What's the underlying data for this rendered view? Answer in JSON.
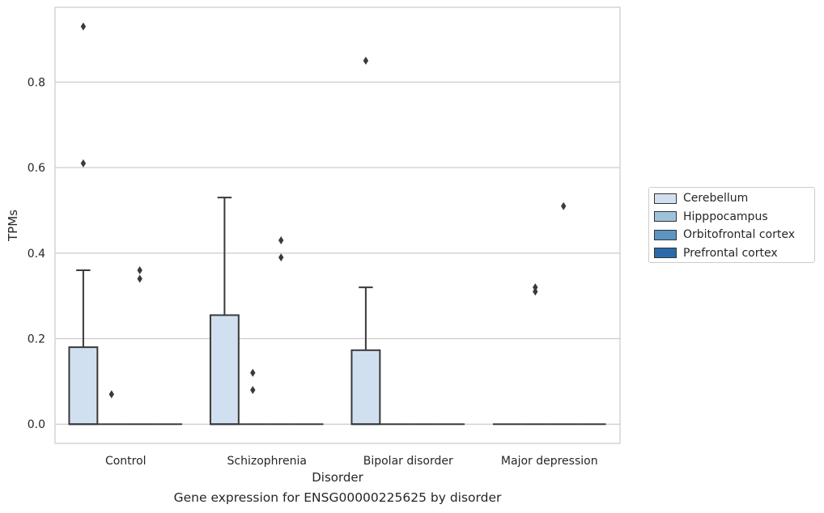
{
  "chart_data": {
    "type": "box",
    "title": "",
    "caption": "Gene expression for ENSG00000225625 by disorder",
    "xlabel": "Disorder",
    "ylabel": "TPMs",
    "ylim": [
      -0.045,
      0.975
    ],
    "yticks": [
      0.0,
      0.2,
      0.4,
      0.6,
      0.8
    ],
    "ytick_labels": [
      "0.0",
      "0.2",
      "0.4",
      "0.6",
      "0.8"
    ],
    "grid": "horizontal",
    "legend_position": "right",
    "categories": [
      "Control",
      "Schizophrenia",
      "Bipolar disorder",
      "Major depression"
    ],
    "series": [
      {
        "name": "Cerebellum",
        "color": "#d1e0f0",
        "boxes": [
          {
            "category": "Control",
            "min": 0.0,
            "q1": 0.0,
            "median": 0.0,
            "q3": 0.18,
            "max": 0.36,
            "outliers": [
              0.61,
              0.93
            ]
          },
          {
            "category": "Schizophrenia",
            "min": 0.0,
            "q1": 0.0,
            "median": 0.0,
            "q3": 0.255,
            "max": 0.53,
            "outliers": []
          },
          {
            "category": "Bipolar disorder",
            "min": 0.0,
            "q1": 0.0,
            "median": 0.0,
            "q3": 0.173,
            "max": 0.32,
            "outliers": [
              0.85
            ]
          },
          {
            "category": "Major depression",
            "min": 0.0,
            "q1": 0.0,
            "median": 0.0,
            "q3": 0.0,
            "max": 0.0,
            "outliers": []
          }
        ]
      },
      {
        "name": "Hipppocampus",
        "color": "#9ec2dc",
        "boxes": [
          {
            "category": "Control",
            "min": 0.0,
            "q1": 0.0,
            "median": 0.0,
            "q3": 0.0,
            "max": 0.0,
            "outliers": [
              0.07
            ]
          },
          {
            "category": "Schizophrenia",
            "min": 0.0,
            "q1": 0.0,
            "median": 0.0,
            "q3": 0.0,
            "max": 0.0,
            "outliers": [
              0.08,
              0.12
            ]
          },
          {
            "category": "Bipolar disorder",
            "min": 0.0,
            "q1": 0.0,
            "median": 0.0,
            "q3": 0.0,
            "max": 0.0,
            "outliers": []
          },
          {
            "category": "Major depression",
            "min": 0.0,
            "q1": 0.0,
            "median": 0.0,
            "q3": 0.0,
            "max": 0.0,
            "outliers": [
              0.31,
              0.32
            ]
          }
        ]
      },
      {
        "name": "Orbitofrontal cortex",
        "color": "#5c95c2",
        "boxes": [
          {
            "category": "Control",
            "min": 0.0,
            "q1": 0.0,
            "median": 0.0,
            "q3": 0.0,
            "max": 0.0,
            "outliers": [
              0.34,
              0.36
            ]
          },
          {
            "category": "Schizophrenia",
            "min": 0.0,
            "q1": 0.0,
            "median": 0.0,
            "q3": 0.0,
            "max": 0.0,
            "outliers": [
              0.39,
              0.43
            ]
          },
          {
            "category": "Bipolar disorder",
            "min": 0.0,
            "q1": 0.0,
            "median": 0.0,
            "q3": 0.0,
            "max": 0.0,
            "outliers": []
          },
          {
            "category": "Major depression",
            "min": 0.0,
            "q1": 0.0,
            "median": 0.0,
            "q3": 0.0,
            "max": 0.0,
            "outliers": [
              0.51
            ]
          }
        ]
      },
      {
        "name": "Prefrontal cortex",
        "color": "#2b6aa8",
        "boxes": [
          {
            "category": "Control",
            "min": 0.0,
            "q1": 0.0,
            "median": 0.0,
            "q3": 0.0,
            "max": 0.0,
            "outliers": []
          },
          {
            "category": "Schizophrenia",
            "min": 0.0,
            "q1": 0.0,
            "median": 0.0,
            "q3": 0.0,
            "max": 0.0,
            "outliers": []
          },
          {
            "category": "Bipolar disorder",
            "min": 0.0,
            "q1": 0.0,
            "median": 0.0,
            "q3": 0.0,
            "max": 0.0,
            "outliers": []
          },
          {
            "category": "Major depression",
            "min": 0.0,
            "q1": 0.0,
            "median": 0.0,
            "q3": 0.0,
            "max": 0.0,
            "outliers": []
          }
        ]
      }
    ]
  }
}
